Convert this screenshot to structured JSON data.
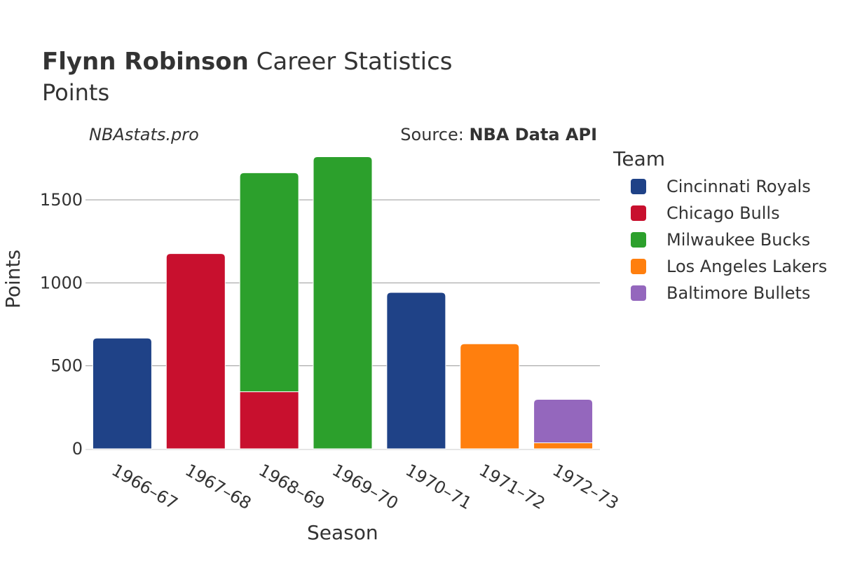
{
  "header": {
    "title_bold": "Flynn Robinson",
    "title_rest": " Career Statistics",
    "subtitle": "Points",
    "site": "NBAstats.pro",
    "source_prefix": "Source: ",
    "source_name": "NBA Data API"
  },
  "legend": {
    "title": "Team",
    "items": [
      {
        "label": "Cincinnati Royals",
        "color": "#1f4287"
      },
      {
        "label": "Chicago Bulls",
        "color": "#c8102e"
      },
      {
        "label": "Milwaukee Bucks",
        "color": "#2ca02c"
      },
      {
        "label": "Los Angeles Lakers",
        "color": "#ff7f0e"
      },
      {
        "label": "Baltimore Bullets",
        "color": "#9467bd"
      }
    ]
  },
  "chart_data": {
    "type": "bar",
    "stacked": true,
    "title": "Flynn Robinson Career Statistics",
    "subtitle": "Points",
    "xlabel": "Season",
    "ylabel": "Points",
    "ylim": [
      0,
      1800
    ],
    "yticks": [
      0,
      500,
      1000,
      1500
    ],
    "grid": true,
    "legend_position": "right",
    "categories": [
      "1966–67",
      "1967–68",
      "1968–69",
      "1969–70",
      "1970–71",
      "1971–72",
      "1972–73"
    ],
    "series": [
      {
        "name": "Cincinnati Royals",
        "color": "#1f4287",
        "values": [
          667,
          0,
          0,
          0,
          942,
          0,
          0
        ]
      },
      {
        "name": "Chicago Bulls",
        "color": "#c8102e",
        "values": [
          0,
          1176,
          344,
          0,
          0,
          0,
          0
        ]
      },
      {
        "name": "Milwaukee Bucks",
        "color": "#2ca02c",
        "values": [
          0,
          0,
          1319,
          1760,
          0,
          0,
          0
        ]
      },
      {
        "name": "Los Angeles Lakers",
        "color": "#ff7f0e",
        "values": [
          0,
          0,
          0,
          0,
          0,
          633,
          36
        ]
      },
      {
        "name": "Baltimore Bullets",
        "color": "#9467bd",
        "values": [
          0,
          0,
          0,
          0,
          0,
          0,
          262
        ]
      }
    ]
  }
}
